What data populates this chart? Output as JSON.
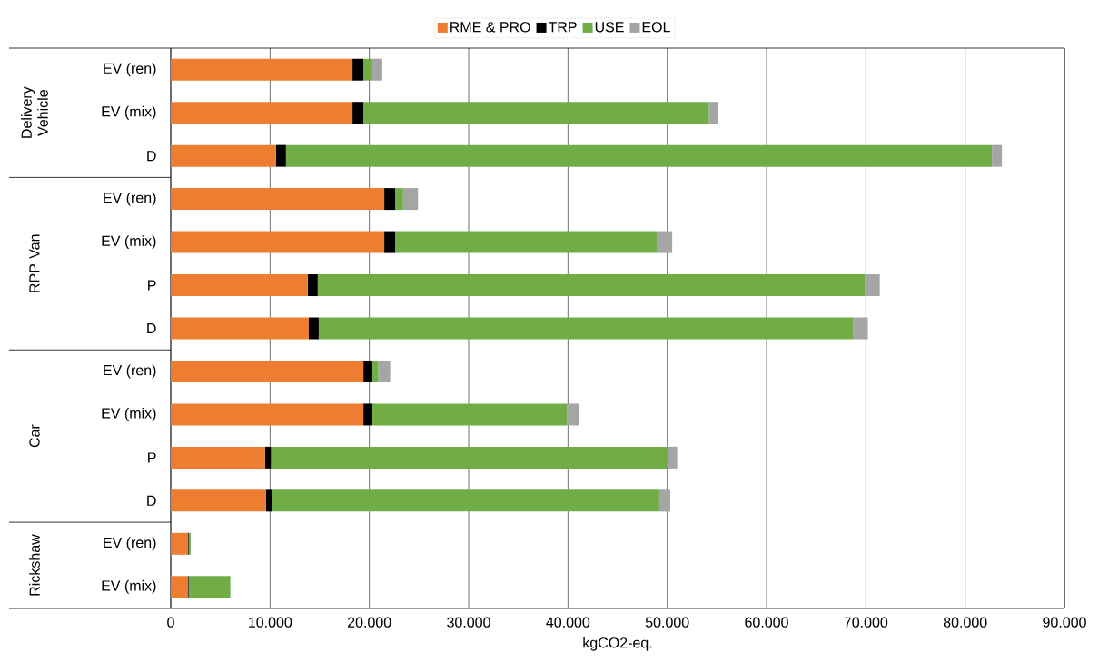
{
  "chart_data": {
    "type": "bar",
    "orientation": "horizontal",
    "stacked": true,
    "categories": [
      "EV (ren)",
      "EV (mix)",
      "D",
      "EV (ren)",
      "EV (mix)",
      "P",
      "D",
      "EV (ren)",
      "EV (mix)",
      "P",
      "D",
      "EV (ren)",
      "EV (mix)"
    ],
    "series": [
      {
        "name": "RME & PRO",
        "color": "#ed7d31",
        "values": [
          18300,
          18300,
          10600,
          21500,
          21500,
          13800,
          13900,
          19400,
          19400,
          9500,
          9600,
          1700,
          1700
        ]
      },
      {
        "name": "TRP",
        "color": "#000000",
        "values": [
          1100,
          1100,
          1000,
          1100,
          1100,
          1000,
          1000,
          900,
          900,
          600,
          600,
          100,
          100
        ]
      },
      {
        "name": "USE",
        "color": "#70ad47",
        "values": [
          900,
          34800,
          71100,
          800,
          26400,
          55100,
          53800,
          600,
          19600,
          39900,
          39000,
          200,
          4200
        ]
      },
      {
        "name": "EOL",
        "color": "#a5a5a5",
        "values": [
          1000,
          900,
          1000,
          1500,
          1500,
          1500,
          1500,
          1200,
          1200,
          1000,
          1100,
          0,
          0
        ]
      }
    ],
    "xlim": [
      0,
      90000
    ],
    "xticks": [
      0,
      {
        "value": 10000,
        "label": "10.000"
      },
      {
        "value": 20000,
        "label": "20.000"
      },
      {
        "value": 30000,
        "label": "30.000"
      },
      {
        "value": 40000,
        "label": "40.000"
      },
      {
        "value": 50000,
        "label": "50.000"
      },
      {
        "value": 60000,
        "label": "60.000"
      },
      {
        "value": 70000,
        "label": "70.000"
      },
      {
        "value": 80000,
        "label": "80.000"
      },
      {
        "value": 90000,
        "label": "90.000"
      }
    ],
    "xlabel": "kgCO2-eq.",
    "annotations": [
      "Delivery Vehicle",
      "RPP Van",
      "Car",
      "Rickshaw"
    ],
    "grid": "x",
    "legend": "top"
  }
}
